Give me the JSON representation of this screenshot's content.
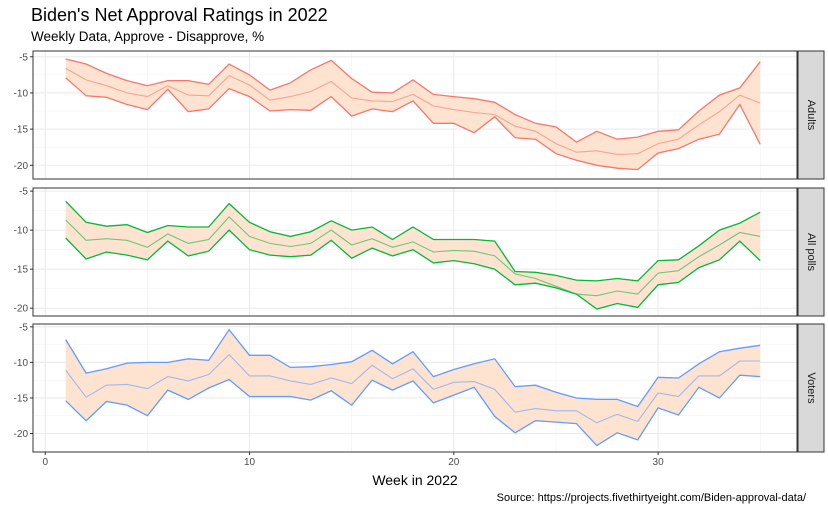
{
  "title": "Biden's Net Approval Ratings in 2022",
  "subtitle": "Weekly Data, Approve - Disapprove, %",
  "caption": "Source: https://projects.fivethirtyeight.com/Biden-approval-data/",
  "chart_data": {
    "type": "line",
    "title": "Biden's Net Approval Ratings in 2022",
    "subtitle": "Weekly Data, Approve - Disapprove, %",
    "xlabel": "Week in 2022",
    "ylabel": "",
    "x_ticks": [
      0,
      10,
      20,
      30
    ],
    "y_ticks": [
      -5,
      -10,
      -15,
      -20
    ],
    "xlim": [
      -0.6,
      36.8
    ],
    "grid": true,
    "fill_color": "#fde3d0",
    "x": [
      1,
      2,
      3,
      4,
      5,
      6,
      7,
      8,
      9,
      10,
      11,
      12,
      13,
      14,
      15,
      16,
      17,
      18,
      19,
      20,
      21,
      22,
      23,
      24,
      25,
      26,
      27,
      28,
      29,
      30,
      31,
      32,
      33,
      34,
      35
    ],
    "panels": [
      {
        "name": "Adults",
        "color": "#f8766d",
        "ylim": [
          -21.9,
          -4.2
        ],
        "upper": [
          -5.3,
          -6.0,
          -7.3,
          -8.3,
          -9.0,
          -8.3,
          -8.3,
          -8.8,
          -6.0,
          -7.5,
          -9.6,
          -8.6,
          -6.8,
          -5.5,
          -8.0,
          -9.9,
          -10.0,
          -8.2,
          -10.2,
          -10.5,
          -10.8,
          -11.3,
          -13.0,
          -14.2,
          -14.7,
          -16.8,
          -15.3,
          -16.4,
          -16.1,
          -15.3,
          -15.1,
          -12.5,
          -10.3,
          -9.3,
          -5.7
        ],
        "mid": [
          -6.6,
          -8.2,
          -9.0,
          -10.0,
          -10.5,
          -9.0,
          -10.3,
          -10.4,
          -7.6,
          -8.9,
          -11.0,
          -10.5,
          -9.8,
          -8.4,
          -10.7,
          -11.1,
          -11.2,
          -10.2,
          -11.8,
          -12.3,
          -12.7,
          -13.0,
          -14.6,
          -15.3,
          -17.0,
          -18.2,
          -18.0,
          -18.5,
          -18.4,
          -17.0,
          -16.4,
          -14.4,
          -12.6,
          -10.3,
          -11.4
        ],
        "lower": [
          -7.9,
          -10.4,
          -10.6,
          -11.6,
          -12.3,
          -9.5,
          -12.6,
          -12.2,
          -9.4,
          -10.5,
          -12.5,
          -12.3,
          -12.4,
          -10.5,
          -13.2,
          -12.2,
          -12.6,
          -11.1,
          -14.2,
          -14.2,
          -15.5,
          -13.3,
          -16.2,
          -16.4,
          -18.4,
          -19.3,
          -20.0,
          -20.4,
          -20.6,
          -18.3,
          -17.7,
          -16.4,
          -15.7,
          -11.6,
          -17.1
        ]
      },
      {
        "name": "All polls",
        "color": "#00ba38",
        "ylim": [
          -21.0,
          -4.6
        ],
        "upper": [
          -6.3,
          -9.0,
          -9.5,
          -9.3,
          -10.3,
          -9.4,
          -9.6,
          -9.6,
          -6.6,
          -9.0,
          -10.2,
          -10.8,
          -10.2,
          -8.8,
          -10.0,
          -9.6,
          -11.2,
          -9.6,
          -11.2,
          -11.2,
          -11.2,
          -11.4,
          -15.3,
          -15.4,
          -15.8,
          -16.4,
          -16.5,
          -16.2,
          -16.5,
          -13.9,
          -13.8,
          -12.0,
          -10.0,
          -9.1,
          -7.7
        ],
        "mid": [
          -8.7,
          -11.3,
          -11.1,
          -11.3,
          -12.2,
          -10.5,
          -11.7,
          -11.2,
          -8.3,
          -10.8,
          -11.7,
          -12.1,
          -11.7,
          -10.0,
          -11.9,
          -11.1,
          -12.2,
          -11.5,
          -12.8,
          -12.6,
          -12.7,
          -13.3,
          -15.6,
          -16.2,
          -17.2,
          -18.2,
          -18.4,
          -17.8,
          -18.2,
          -15.5,
          -15.2,
          -13.4,
          -11.9,
          -10.3,
          -10.8
        ],
        "lower": [
          -11.0,
          -13.7,
          -12.8,
          -13.2,
          -13.8,
          -11.4,
          -13.3,
          -12.7,
          -10.0,
          -12.5,
          -13.2,
          -13.4,
          -13.2,
          -11.3,
          -13.6,
          -12.3,
          -13.3,
          -12.5,
          -14.2,
          -13.9,
          -14.3,
          -15.0,
          -17.0,
          -16.8,
          -17.4,
          -18.2,
          -20.1,
          -19.4,
          -19.9,
          -17.0,
          -16.7,
          -14.8,
          -13.8,
          -11.4,
          -13.9
        ]
      },
      {
        "name": "Voters",
        "color": "#619cff",
        "ylim": [
          -22.6,
          -4.6
        ],
        "upper": [
          -6.8,
          -11.5,
          -10.9,
          -10.1,
          -10.0,
          -10.0,
          -9.5,
          -9.7,
          -5.4,
          -9.0,
          -9.0,
          -10.7,
          -10.6,
          -10.3,
          -9.9,
          -8.3,
          -10.2,
          -8.5,
          -12.0,
          -11.0,
          -10.2,
          -9.5,
          -13.4,
          -13.2,
          -14.2,
          -15.0,
          -15.2,
          -15.2,
          -16.2,
          -12.1,
          -12.2,
          -10.2,
          -8.5,
          -8.0,
          -7.6
        ],
        "mid": [
          -11.1,
          -14.9,
          -13.2,
          -13.1,
          -13.7,
          -12.0,
          -12.6,
          -11.7,
          -8.9,
          -11.9,
          -11.9,
          -12.6,
          -13.1,
          -12.2,
          -13.0,
          -10.4,
          -12.3,
          -10.9,
          -13.8,
          -12.8,
          -12.7,
          -13.8,
          -17.0,
          -16.5,
          -16.8,
          -16.8,
          -18.5,
          -17.3,
          -18.3,
          -14.3,
          -14.8,
          -11.9,
          -11.9,
          -9.8,
          -9.8
        ],
        "lower": [
          -15.4,
          -18.2,
          -15.5,
          -16.0,
          -17.5,
          -13.9,
          -15.2,
          -13.6,
          -12.4,
          -14.8,
          -14.8,
          -14.8,
          -15.3,
          -14.0,
          -16.0,
          -12.5,
          -13.9,
          -12.6,
          -15.7,
          -14.6,
          -13.5,
          -17.6,
          -19.9,
          -18.2,
          -18.4,
          -18.6,
          -21.7,
          -19.9,
          -20.9,
          -16.4,
          -17.4,
          -13.5,
          -15.0,
          -11.8,
          -12.0
        ]
      }
    ]
  }
}
